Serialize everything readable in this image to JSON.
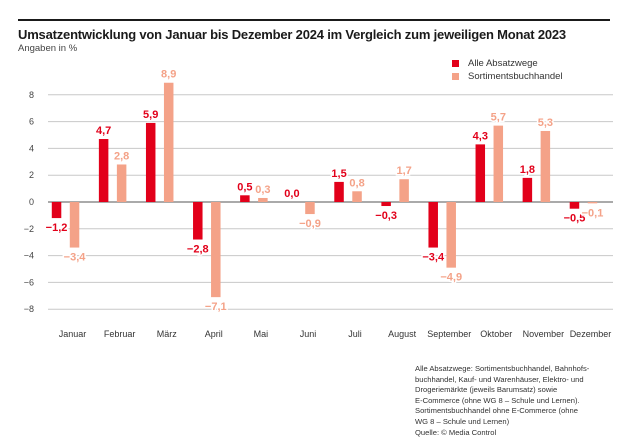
{
  "header": {
    "title": "Umsatzentwicklung von Januar bis Dezember 2024 im Vergleich zum jeweiligen Monat 2023",
    "subtitle": "Angaben in %"
  },
  "legend": [
    {
      "label": "Alle Absatzwege",
      "color": "#e2001a"
    },
    {
      "label": "Sortimentsbuchhandel",
      "color": "#f4a288"
    }
  ],
  "note": [
    "Alle Absatzwege: Sortimentsbuchhandel, Bahnhofs-",
    "buchhandel, Kauf- und Warenhäuser, Elektro- und",
    "Drogeriemärkte (jeweils Barumsatz) sowie",
    "E-Commerce (ohne WG 8 – Schule und Lernen).",
    "Sortimentsbuchhandel ohne E-Commerce (ohne",
    "WG 8 – Schule und Lernen)",
    "Quelle: © Media Control"
  ],
  "chart_data": {
    "type": "bar",
    "title": "Umsatzentwicklung von Januar bis Dezember 2024 im Vergleich zum jeweiligen Monat 2023",
    "subtitle": "Angaben in %",
    "xlabel": "",
    "ylabel": "",
    "ylim": [
      -8,
      8
    ],
    "yticks": [
      8,
      6,
      4,
      2,
      0,
      -2,
      -4,
      -6,
      -8
    ],
    "ytick_labels": [
      "8",
      "6",
      "4",
      "2",
      "0",
      "−2",
      "−4",
      "−6",
      "−8"
    ],
    "grid": true,
    "legend_position": "top-right",
    "categories": [
      "Januar",
      "Februar",
      "März",
      "April",
      "Mai",
      "Juni",
      "Juli",
      "August",
      "September",
      "Oktober",
      "November",
      "Dezember"
    ],
    "series": [
      {
        "name": "Alle Absatzwege",
        "color": "#e2001a",
        "values": [
          -1.2,
          4.7,
          5.9,
          -2.8,
          0.5,
          0.0,
          1.5,
          -0.3,
          -3.4,
          4.3,
          1.8,
          -0.5
        ],
        "labels": [
          "−1,2",
          "4,7",
          "5,9",
          "−2,8",
          "0,5",
          "0,0",
          "1,5",
          "−0,3",
          "−3,4",
          "4,3",
          "1,8",
          "−0,5"
        ]
      },
      {
        "name": "Sortimentsbuchhandel",
        "color": "#f4a288",
        "values": [
          -3.4,
          2.8,
          8.9,
          -7.1,
          0.3,
          -0.9,
          0.8,
          1.7,
          -4.9,
          5.7,
          5.3,
          -0.1
        ],
        "labels": [
          "−3,4",
          "2,8",
          "8,9",
          "−7,1",
          "0,3",
          "−0,9",
          "0,8",
          "1,7",
          "−4,9",
          "5,7",
          "5,3",
          "−0,1"
        ]
      }
    ]
  }
}
